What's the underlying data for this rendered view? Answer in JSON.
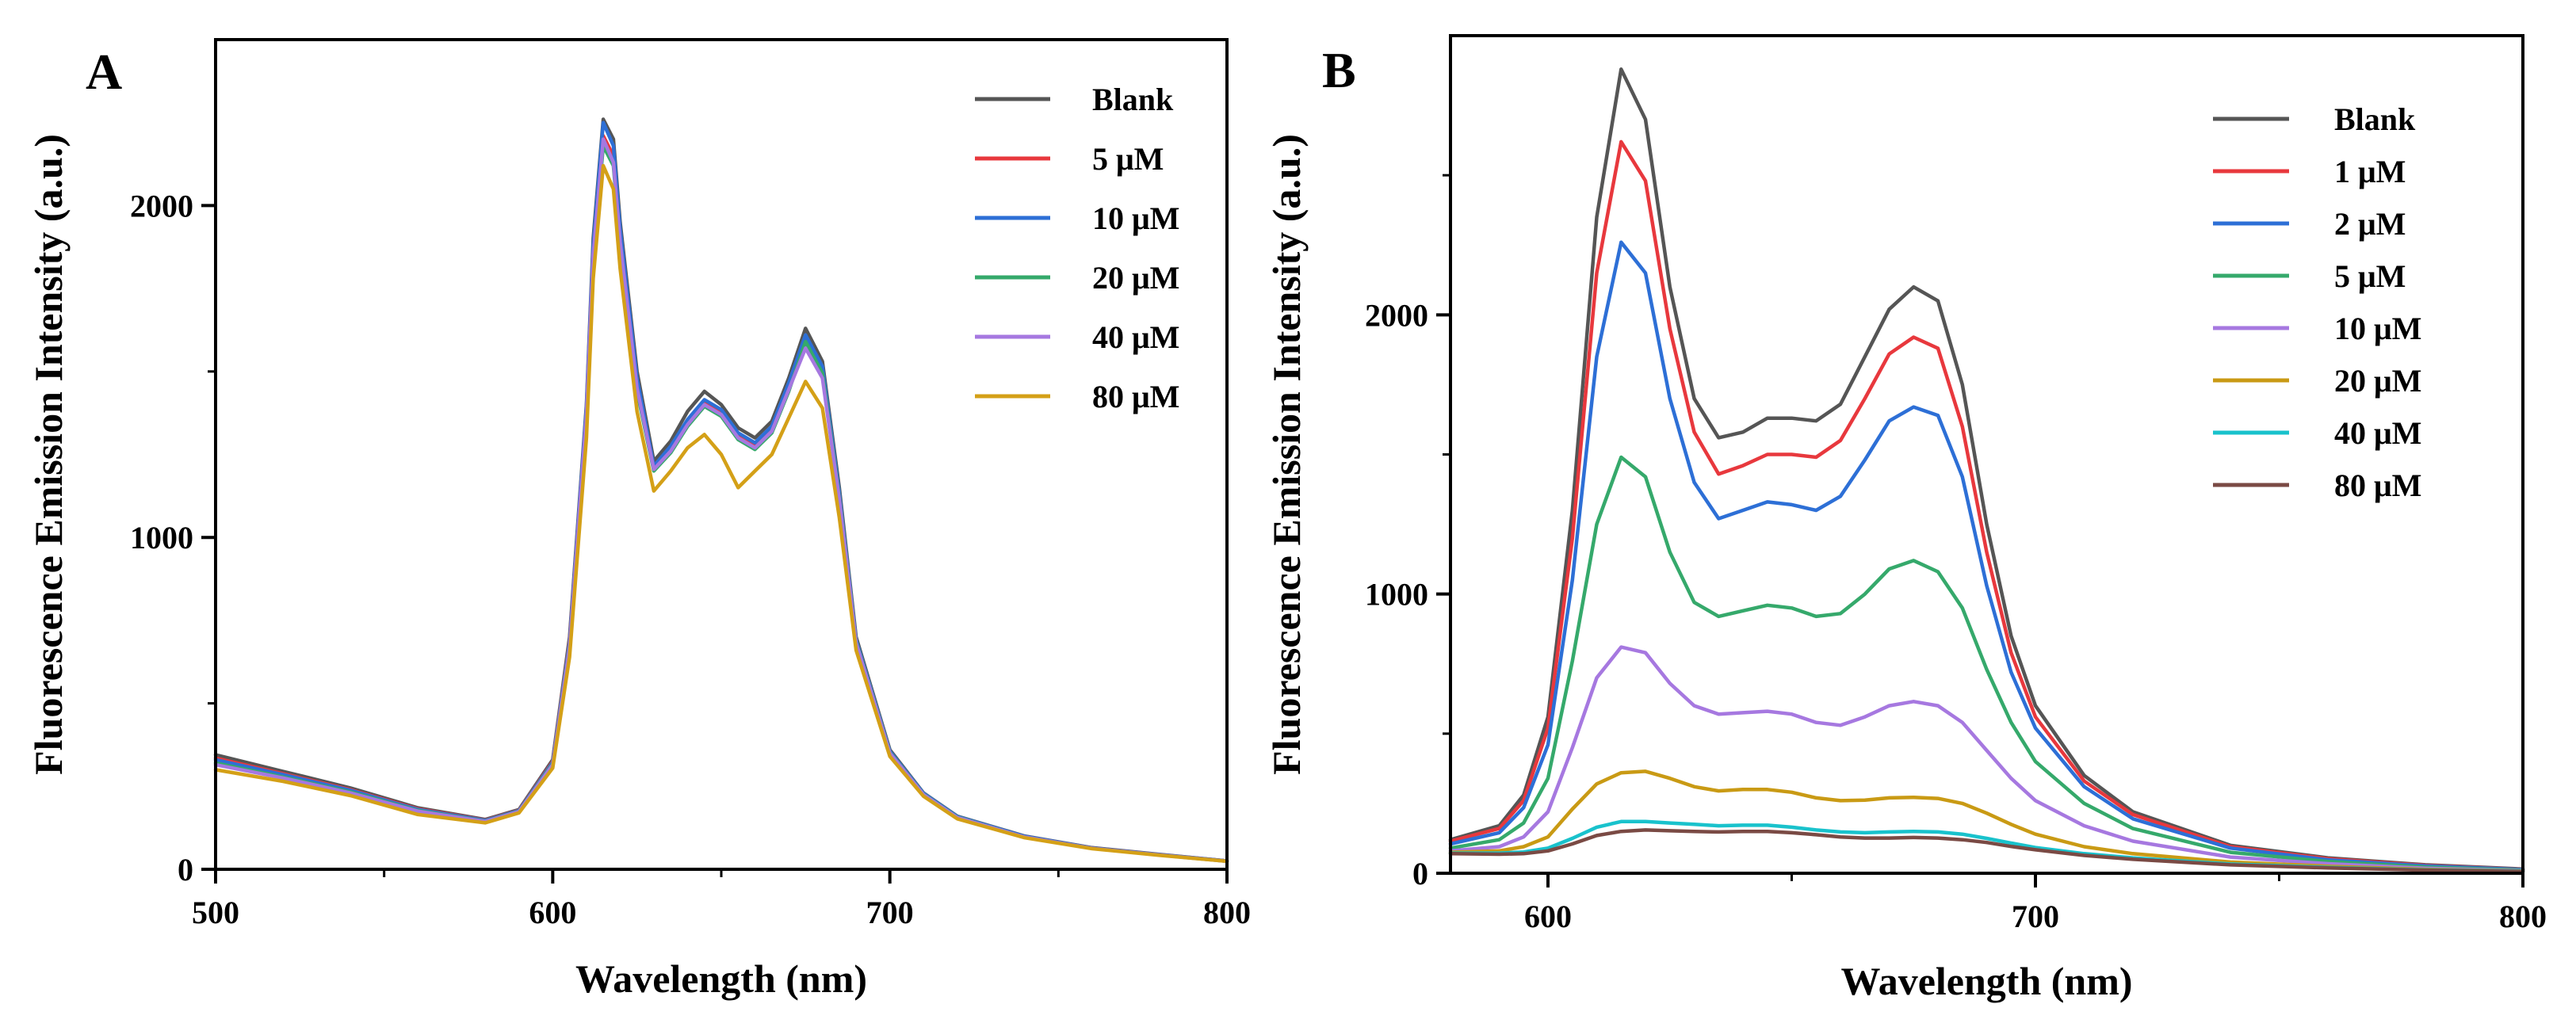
{
  "figure": {
    "background": "#ffffff"
  },
  "chart_data": [
    {
      "panel": "A",
      "type": "line",
      "title": "",
      "xlabel": "Wavelength (nm)",
      "ylabel": "Fluorescence Emission Intensity (a.u.)",
      "xlim": [
        500,
        800
      ],
      "ylim": [
        0,
        2500
      ],
      "xticks": [
        500,
        600,
        700,
        800
      ],
      "yticks": [
        0,
        1000,
        2000
      ],
      "grid": false,
      "legend_position": "top-right",
      "series": [
        {
          "name": "Blank",
          "color": "#555555",
          "x": [
            500,
            520,
            540,
            560,
            580,
            590,
            600,
            605,
            610,
            612,
            615,
            618,
            620,
            625,
            630,
            635,
            640,
            645,
            650,
            655,
            660,
            665,
            670,
            675,
            680,
            685,
            690,
            700,
            710,
            720,
            740,
            760,
            780,
            800
          ],
          "y": [
            345,
            295,
            245,
            185,
            150,
            180,
            330,
            700,
            1400,
            1900,
            2260,
            2200,
            1950,
            1500,
            1230,
            1290,
            1380,
            1440,
            1400,
            1330,
            1300,
            1350,
            1480,
            1630,
            1530,
            1150,
            700,
            360,
            230,
            160,
            100,
            65,
            45,
            25
          ]
        },
        {
          "name": "5 μM",
          "color": "#e8383d",
          "x": [
            500,
            520,
            540,
            560,
            580,
            590,
            600,
            605,
            610,
            612,
            615,
            618,
            620,
            625,
            630,
            635,
            640,
            645,
            650,
            655,
            660,
            665,
            670,
            675,
            680,
            685,
            690,
            700,
            710,
            720,
            740,
            760,
            780,
            800
          ],
          "y": [
            335,
            288,
            240,
            182,
            148,
            178,
            325,
            690,
            1380,
            1870,
            2210,
            2150,
            1910,
            1470,
            1210,
            1270,
            1350,
            1410,
            1380,
            1310,
            1280,
            1330,
            1460,
            1600,
            1510,
            1130,
            690,
            355,
            228,
            158,
            98,
            64,
            44,
            25
          ]
        },
        {
          "name": "10 μM",
          "color": "#2d6fd6",
          "x": [
            500,
            520,
            540,
            560,
            580,
            590,
            600,
            605,
            610,
            612,
            615,
            618,
            620,
            625,
            630,
            635,
            640,
            645,
            650,
            655,
            660,
            665,
            670,
            675,
            680,
            685,
            690,
            700,
            710,
            720,
            740,
            760,
            780,
            800
          ],
          "y": [
            330,
            285,
            238,
            180,
            147,
            177,
            322,
            685,
            1390,
            1880,
            2250,
            2180,
            1930,
            1480,
            1215,
            1275,
            1355,
            1415,
            1385,
            1315,
            1285,
            1335,
            1465,
            1610,
            1515,
            1135,
            692,
            356,
            229,
            159,
            99,
            64,
            44,
            25
          ]
        },
        {
          "name": "20 μM",
          "color": "#35a96b",
          "x": [
            500,
            520,
            540,
            560,
            580,
            590,
            600,
            605,
            610,
            612,
            615,
            618,
            620,
            625,
            630,
            635,
            640,
            645,
            650,
            655,
            660,
            665,
            670,
            675,
            680,
            685,
            690,
            700,
            710,
            720,
            740,
            760,
            780,
            800
          ],
          "y": [
            320,
            278,
            233,
            177,
            145,
            175,
            318,
            675,
            1360,
            1840,
            2180,
            2120,
            1880,
            1440,
            1200,
            1255,
            1335,
            1395,
            1365,
            1295,
            1265,
            1315,
            1440,
            1590,
            1495,
            1120,
            685,
            352,
            226,
            157,
            97,
            63,
            43,
            24
          ]
        },
        {
          "name": "40 μM",
          "color": "#a678e0",
          "x": [
            500,
            520,
            540,
            560,
            580,
            590,
            600,
            605,
            610,
            612,
            615,
            618,
            620,
            625,
            630,
            635,
            640,
            645,
            650,
            655,
            660,
            665,
            670,
            675,
            680,
            685,
            690,
            700,
            710,
            720,
            740,
            760,
            780,
            800
          ],
          "y": [
            315,
            275,
            230,
            175,
            144,
            174,
            315,
            670,
            1370,
            1850,
            2200,
            2130,
            1890,
            1450,
            1205,
            1260,
            1340,
            1400,
            1370,
            1300,
            1270,
            1320,
            1445,
            1570,
            1480,
            1115,
            682,
            350,
            225,
            156,
            97,
            63,
            43,
            24
          ]
        },
        {
          "name": "80 μM",
          "color": "#d4a017",
          "x": [
            500,
            520,
            540,
            560,
            580,
            590,
            600,
            605,
            610,
            612,
            615,
            618,
            620,
            625,
            630,
            635,
            640,
            645,
            650,
            655,
            660,
            665,
            670,
            675,
            680,
            685,
            690,
            700,
            710,
            720,
            740,
            760,
            780,
            800
          ],
          "y": [
            300,
            265,
            222,
            165,
            140,
            170,
            305,
            640,
            1300,
            1780,
            2120,
            2050,
            1810,
            1380,
            1140,
            1200,
            1270,
            1310,
            1250,
            1150,
            1200,
            1250,
            1360,
            1470,
            1390,
            1060,
            660,
            340,
            220,
            152,
            95,
            62,
            42,
            24
          ]
        }
      ]
    },
    {
      "panel": "B",
      "type": "line",
      "title": "",
      "xlabel": "Wavelength (nm)",
      "ylabel": "Fluorescence Emission Intensity (a.u.)",
      "xlim": [
        580,
        800
      ],
      "ylim": [
        0,
        3000
      ],
      "xticks": [
        600,
        700,
        800
      ],
      "yticks": [
        0,
        1000,
        2000
      ],
      "grid": false,
      "legend_position": "top-right",
      "series": [
        {
          "name": "Blank",
          "color": "#555555",
          "x": [
            580,
            590,
            595,
            600,
            605,
            610,
            615,
            620,
            625,
            630,
            635,
            640,
            645,
            650,
            655,
            660,
            665,
            670,
            675,
            680,
            685,
            690,
            695,
            700,
            710,
            720,
            740,
            760,
            780,
            800
          ],
          "y": [
            120,
            170,
            280,
            560,
            1300,
            2350,
            2880,
            2700,
            2100,
            1700,
            1560,
            1580,
            1630,
            1630,
            1620,
            1680,
            1850,
            2020,
            2100,
            2050,
            1750,
            1250,
            850,
            600,
            350,
            220,
            100,
            55,
            30,
            15
          ]
        },
        {
          "name": "1 μM",
          "color": "#e8383d",
          "x": [
            580,
            590,
            595,
            600,
            605,
            610,
            615,
            620,
            625,
            630,
            635,
            640,
            645,
            650,
            655,
            660,
            665,
            670,
            675,
            680,
            685,
            690,
            695,
            700,
            710,
            720,
            740,
            760,
            780,
            800
          ],
          "y": [
            115,
            160,
            260,
            520,
            1200,
            2150,
            2620,
            2480,
            1950,
            1580,
            1430,
            1460,
            1500,
            1500,
            1490,
            1550,
            1700,
            1860,
            1920,
            1880,
            1600,
            1150,
            790,
            560,
            330,
            210,
            95,
            52,
            28,
            14
          ]
        },
        {
          "name": "2 μM",
          "color": "#2d6fd6",
          "x": [
            580,
            590,
            595,
            600,
            605,
            610,
            615,
            620,
            625,
            630,
            635,
            640,
            645,
            650,
            655,
            660,
            665,
            670,
            675,
            680,
            685,
            690,
            695,
            700,
            710,
            720,
            740,
            760,
            780,
            800
          ],
          "y": [
            105,
            145,
            235,
            460,
            1050,
            1850,
            2260,
            2150,
            1700,
            1400,
            1270,
            1300,
            1330,
            1320,
            1300,
            1350,
            1480,
            1620,
            1670,
            1640,
            1420,
            1030,
            720,
            520,
            310,
            195,
            90,
            48,
            26,
            13
          ]
        },
        {
          "name": "5 μM",
          "color": "#35a96b",
          "x": [
            580,
            590,
            595,
            600,
            605,
            610,
            615,
            620,
            625,
            630,
            635,
            640,
            645,
            650,
            655,
            660,
            665,
            670,
            675,
            680,
            685,
            690,
            695,
            700,
            710,
            720,
            740,
            760,
            780,
            800
          ],
          "y": [
            90,
            120,
            180,
            340,
            760,
            1250,
            1490,
            1420,
            1150,
            970,
            920,
            940,
            960,
            950,
            920,
            930,
            1000,
            1090,
            1120,
            1080,
            950,
            730,
            540,
            400,
            250,
            160,
            75,
            42,
            22,
            11
          ]
        },
        {
          "name": "10 μM",
          "color": "#a678e0",
          "x": [
            580,
            590,
            595,
            600,
            605,
            610,
            615,
            620,
            625,
            630,
            635,
            640,
            645,
            650,
            655,
            660,
            665,
            670,
            675,
            680,
            685,
            690,
            695,
            700,
            710,
            720,
            740,
            760,
            780,
            800
          ],
          "y": [
            80,
            95,
            130,
            220,
            450,
            700,
            810,
            790,
            680,
            600,
            570,
            575,
            580,
            570,
            540,
            530,
            560,
            600,
            615,
            600,
            540,
            440,
            340,
            260,
            170,
            115,
            58,
            34,
            18,
            9
          ]
        },
        {
          "name": "20 μM",
          "color": "#c99a14",
          "x": [
            580,
            590,
            595,
            600,
            605,
            610,
            615,
            620,
            625,
            630,
            635,
            640,
            645,
            650,
            655,
            660,
            665,
            670,
            675,
            680,
            685,
            690,
            695,
            700,
            710,
            720,
            740,
            760,
            780,
            800
          ],
          "y": [
            75,
            80,
            95,
            130,
            230,
            320,
            360,
            365,
            340,
            310,
            295,
            300,
            300,
            290,
            270,
            260,
            262,
            270,
            272,
            268,
            250,
            215,
            175,
            140,
            95,
            70,
            40,
            25,
            14,
            8
          ]
        },
        {
          "name": "40 μM",
          "color": "#19c2cc",
          "x": [
            580,
            590,
            595,
            600,
            605,
            610,
            615,
            620,
            625,
            630,
            635,
            640,
            645,
            650,
            655,
            660,
            665,
            670,
            675,
            680,
            685,
            690,
            695,
            700,
            710,
            720,
            740,
            760,
            780,
            800
          ],
          "y": [
            72,
            72,
            76,
            90,
            125,
            165,
            185,
            185,
            180,
            175,
            170,
            172,
            172,
            165,
            155,
            148,
            145,
            148,
            150,
            148,
            140,
            125,
            108,
            92,
            70,
            55,
            33,
            21,
            12,
            7
          ]
        },
        {
          "name": "80 μM",
          "color": "#7a4a44",
          "x": [
            580,
            590,
            595,
            600,
            605,
            610,
            615,
            620,
            625,
            630,
            635,
            640,
            645,
            650,
            655,
            660,
            665,
            670,
            675,
            680,
            685,
            690,
            695,
            700,
            710,
            720,
            740,
            760,
            780,
            800
          ],
          "y": [
            70,
            68,
            70,
            80,
            105,
            135,
            150,
            155,
            152,
            150,
            148,
            150,
            150,
            145,
            138,
            130,
            126,
            126,
            128,
            126,
            120,
            110,
            96,
            84,
            64,
            50,
            30,
            19,
            11,
            6
          ]
        }
      ]
    }
  ]
}
